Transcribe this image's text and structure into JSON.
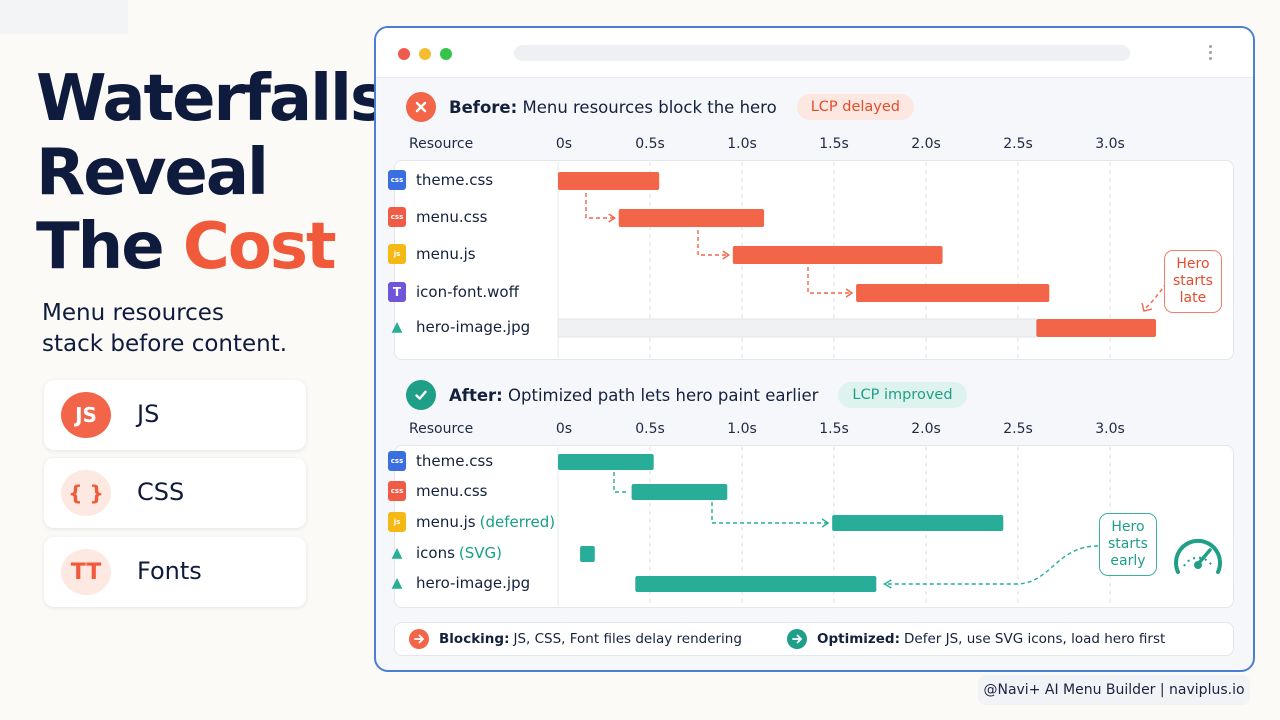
{
  "title": {
    "line1": "Waterfalls",
    "line2": "Reveal",
    "line3_plain": "The ",
    "line3_accent": "Cost"
  },
  "subtitle": {
    "line1": "Menu resources",
    "line2": "stack before content."
  },
  "categories": [
    {
      "badge": "JS",
      "label": "JS",
      "icon": "js-badge-icon",
      "color": "#f05a3a"
    },
    {
      "badge": "{ }",
      "label": "CSS",
      "icon": "braces-icon",
      "color": "#f05a3a"
    },
    {
      "badge": "TT",
      "label": "Fonts",
      "icon": "font-glyph-icon",
      "color": "#f05a3a"
    }
  ],
  "colors": {
    "blocking": "#f26549",
    "optimized": "#27ad98",
    "navy": "#0f1b3d",
    "frame": "#4a7fd4"
  },
  "ticks": [
    "0s",
    "0.5s",
    "1.0s",
    "1.5s",
    "2.0s",
    "2.5s",
    "3.0s"
  ],
  "before": {
    "title_bold": "Before:",
    "title_rest": "Menu resources block the hero",
    "pill": "LCP delayed",
    "resource_header": "Resource",
    "callout": [
      "Hero",
      "starts",
      "late"
    ]
  },
  "after": {
    "title_bold": "After:",
    "title_rest": "Optimized path lets hero paint earlier",
    "pill": "LCP improved",
    "resource_header": "Resource",
    "callout": [
      "Hero",
      "starts",
      "early"
    ]
  },
  "legend": {
    "blocking_bold": "Blocking:",
    "blocking_text": "JS, CSS, Font files delay rendering",
    "optimized_bold": "Optimized:",
    "optimized_text": "Defer JS, use SVG icons, load hero first"
  },
  "footer": "@Navi+ AI Menu Builder | naviplus.io",
  "chart_data": [
    {
      "type": "gantt",
      "title": "Before: Menu resources block the hero",
      "x_unit": "s",
      "xlim": [
        0,
        3.2
      ],
      "ticks": [
        0,
        0.5,
        1.0,
        1.5,
        2.0,
        2.5,
        3.0
      ],
      "rows": [
        {
          "label": "theme.css",
          "file_type": "CSS",
          "start": 0.0,
          "end": 0.55
        },
        {
          "label": "menu.css",
          "file_type": "CSS",
          "start": 0.33,
          "end": 1.12
        },
        {
          "label": "menu.js",
          "file_type": "JS",
          "start": 0.95,
          "end": 2.09
        },
        {
          "label": "icon-font.woff",
          "file_type": "T",
          "start": 1.62,
          "end": 2.67
        },
        {
          "label": "hero-image.jpg",
          "file_type": "IMG",
          "start": 2.6,
          "end": 3.25,
          "waiting_from": 0.0
        }
      ]
    },
    {
      "type": "gantt",
      "title": "After: Optimized path lets hero paint earlier",
      "x_unit": "s",
      "xlim": [
        0,
        3.2
      ],
      "ticks": [
        0,
        0.5,
        1.0,
        1.5,
        2.0,
        2.5,
        3.0
      ],
      "rows": [
        {
          "label": "theme.css",
          "note": "",
          "file_type": "CSS",
          "start": 0.0,
          "end": 0.52
        },
        {
          "label": "menu.css",
          "note": "",
          "file_type": "CSS",
          "start": 0.4,
          "end": 0.92
        },
        {
          "label": "menu.js",
          "note": "(deferred)",
          "file_type": "JS",
          "start": 1.49,
          "end": 2.42
        },
        {
          "label": "icons",
          "note": "(SVG)",
          "file_type": "IMG",
          "start": 0.12,
          "end": 0.2
        },
        {
          "label": "hero-image.jpg",
          "note": "",
          "file_type": "IMG",
          "start": 0.42,
          "end": 1.73
        }
      ]
    }
  ]
}
